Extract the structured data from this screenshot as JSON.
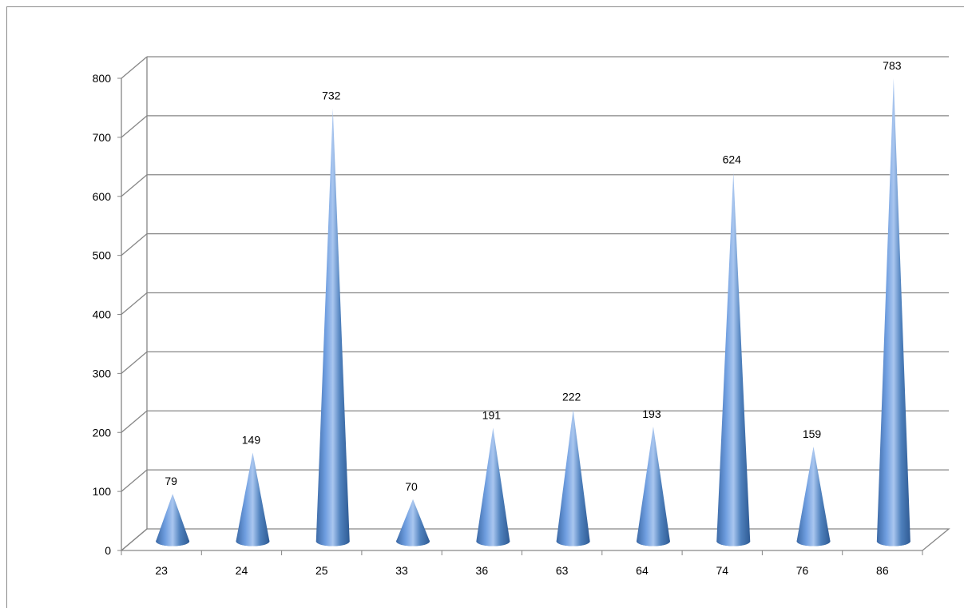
{
  "chart_data": {
    "type": "bar",
    "style": "3d-cone",
    "categories": [
      "23",
      "24",
      "25",
      "33",
      "36",
      "63",
      "64",
      "74",
      "76",
      "86"
    ],
    "values": [
      79,
      149,
      732,
      70,
      191,
      222,
      193,
      624,
      159,
      783
    ],
    "data_labels": [
      "79",
      "149",
      "732",
      "70",
      "191",
      "222",
      "193",
      "624",
      "159",
      "783"
    ],
    "y_ticks": [
      "0",
      "100",
      "200",
      "300",
      "400",
      "500",
      "600",
      "700",
      "800"
    ],
    "ylim": [
      0,
      800
    ],
    "grid": true,
    "legend": "none",
    "colors": {
      "cone_dark": "#2f5b94",
      "cone_mid": "#4f81bd",
      "cone_light": "#a9c6ef",
      "gridline": "#868686",
      "axis": "#868686"
    }
  }
}
